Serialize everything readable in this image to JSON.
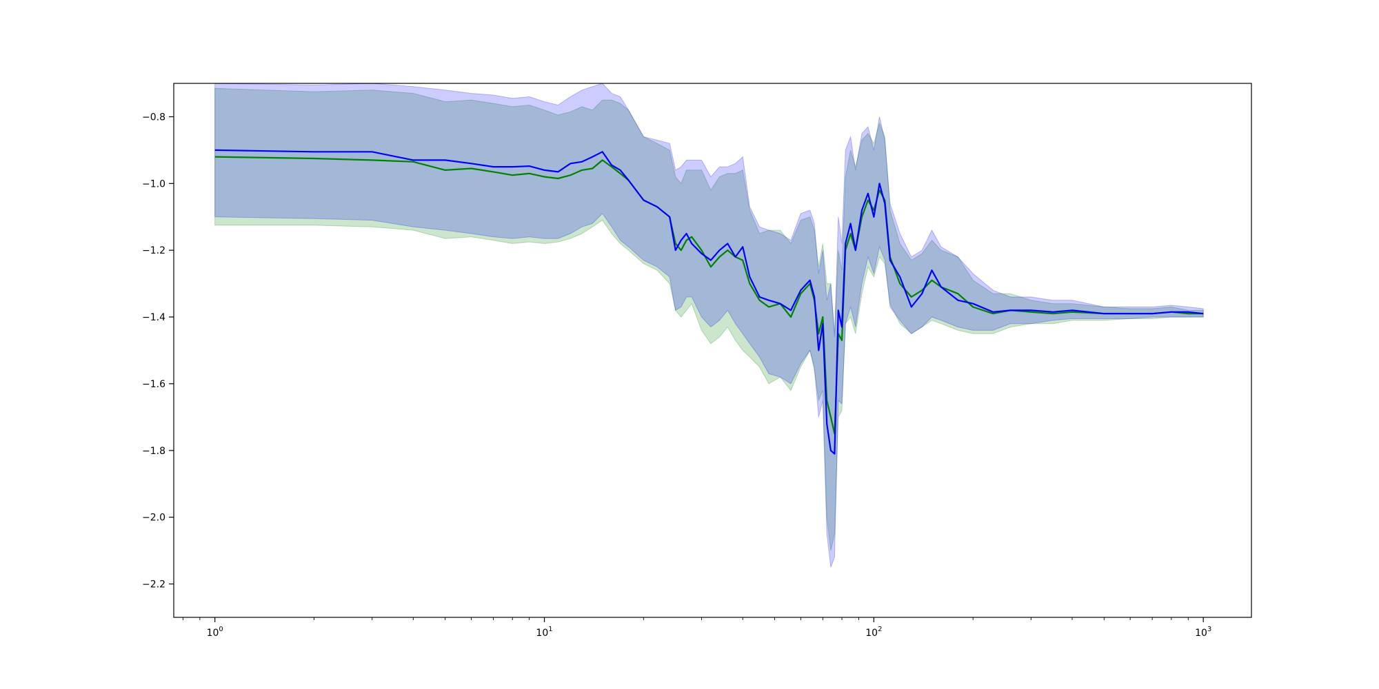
{
  "chart_data": {
    "type": "line",
    "title": "",
    "xlabel": "",
    "ylabel": "",
    "xscale": "log",
    "xlim": [
      0.75,
      1400
    ],
    "ylim": [
      -2.3,
      -0.7
    ],
    "grid": false,
    "legend": "none",
    "x_ticks": [
      {
        "base": "10",
        "exp": "0",
        "value": 1
      },
      {
        "base": "10",
        "exp": "1",
        "value": 10
      },
      {
        "base": "10",
        "exp": "2",
        "value": 100
      },
      {
        "base": "10",
        "exp": "3",
        "value": 1000
      }
    ],
    "y_ticks": [
      {
        "label": "−0.8",
        "value": -0.8
      },
      {
        "label": "−1.0",
        "value": -1.0
      },
      {
        "label": "−1.2",
        "value": -1.2
      },
      {
        "label": "−1.4",
        "value": -1.4
      },
      {
        "label": "−1.6",
        "value": -1.6
      },
      {
        "label": "−1.8",
        "value": -1.8
      },
      {
        "label": "−2.0",
        "value": -2.0
      },
      {
        "label": "−2.2",
        "value": -2.2
      }
    ],
    "series": [
      {
        "color": "#008000",
        "band_color": "#008000",
        "band_opacity": 0.2,
        "x": [
          1,
          2,
          3,
          4,
          5,
          6,
          7,
          8,
          9,
          10,
          11,
          12,
          13,
          14,
          15,
          16,
          17,
          18,
          20,
          22,
          24,
          25,
          26,
          27,
          28,
          30,
          32,
          34,
          36,
          38,
          40,
          42,
          45,
          48,
          52,
          56,
          60,
          64,
          66,
          68,
          70,
          72,
          74,
          76,
          78,
          80,
          82,
          85,
          88,
          92,
          96,
          100,
          104,
          108,
          112,
          120,
          130,
          140,
          150,
          160,
          180,
          200,
          230,
          260,
          300,
          350,
          400,
          500,
          600,
          700,
          800,
          900,
          1000
        ],
        "y": [
          -0.92,
          -0.925,
          -0.93,
          -0.935,
          -0.96,
          -0.955,
          -0.965,
          -0.975,
          -0.97,
          -0.98,
          -0.985,
          -0.975,
          -0.96,
          -0.955,
          -0.93,
          -0.95,
          -0.97,
          -0.99,
          -1.05,
          -1.07,
          -1.1,
          -1.18,
          -1.2,
          -1.17,
          -1.16,
          -1.2,
          -1.25,
          -1.22,
          -1.2,
          -1.22,
          -1.23,
          -1.3,
          -1.35,
          -1.37,
          -1.36,
          -1.4,
          -1.33,
          -1.3,
          -1.35,
          -1.45,
          -1.4,
          -1.65,
          -1.7,
          -1.75,
          -1.45,
          -1.47,
          -1.2,
          -1.15,
          -1.2,
          -1.1,
          -1.05,
          -1.08,
          -1.02,
          -1.05,
          -1.22,
          -1.3,
          -1.34,
          -1.32,
          -1.29,
          -1.31,
          -1.33,
          -1.37,
          -1.39,
          -1.38,
          -1.385,
          -1.39,
          -1.385,
          -1.39,
          -1.39,
          -1.39,
          -1.385,
          -1.39,
          -1.39
        ],
        "lower": [
          -1.125,
          -1.125,
          -1.13,
          -1.14,
          -1.165,
          -1.16,
          -1.17,
          -1.18,
          -1.175,
          -1.18,
          -1.175,
          -1.165,
          -1.15,
          -1.13,
          -1.11,
          -1.15,
          -1.18,
          -1.2,
          -1.24,
          -1.26,
          -1.3,
          -1.38,
          -1.4,
          -1.38,
          -1.36,
          -1.44,
          -1.48,
          -1.46,
          -1.43,
          -1.47,
          -1.5,
          -1.52,
          -1.55,
          -1.6,
          -1.58,
          -1.62,
          -1.55,
          -1.5,
          -1.56,
          -1.65,
          -1.62,
          -2.0,
          -2.1,
          -2.05,
          -1.7,
          -1.68,
          -1.42,
          -1.4,
          -1.45,
          -1.33,
          -1.25,
          -1.28,
          -1.22,
          -1.24,
          -1.36,
          -1.42,
          -1.45,
          -1.43,
          -1.41,
          -1.42,
          -1.44,
          -1.45,
          -1.45,
          -1.43,
          -1.42,
          -1.42,
          -1.41,
          -1.41,
          -1.405,
          -1.405,
          -1.4,
          -1.4,
          -1.4
        ],
        "upper": [
          -0.715,
          -0.725,
          -0.72,
          -0.73,
          -0.755,
          -0.75,
          -0.76,
          -0.77,
          -0.765,
          -0.78,
          -0.795,
          -0.785,
          -0.77,
          -0.78,
          -0.75,
          -0.75,
          -0.76,
          -0.78,
          -0.86,
          -0.88,
          -0.9,
          -0.98,
          -1.0,
          -0.96,
          -0.96,
          -0.96,
          -1.02,
          -0.98,
          -0.97,
          -0.97,
          -0.96,
          -1.08,
          -1.15,
          -1.14,
          -1.14,
          -1.18,
          -1.11,
          -1.1,
          -1.14,
          -1.25,
          -1.18,
          -1.3,
          -1.3,
          -1.45,
          -1.2,
          -1.26,
          -0.98,
          -0.9,
          -0.95,
          -0.87,
          -0.85,
          -0.88,
          -0.82,
          -0.86,
          -1.08,
          -1.18,
          -1.23,
          -1.21,
          -1.17,
          -1.2,
          -1.22,
          -1.29,
          -1.33,
          -1.33,
          -1.35,
          -1.36,
          -1.36,
          -1.37,
          -1.375,
          -1.375,
          -1.37,
          -1.38,
          -1.38
        ]
      },
      {
        "color": "#0000ff",
        "band_color": "#0000ff",
        "band_opacity": 0.2,
        "x": [
          1,
          2,
          3,
          4,
          5,
          6,
          7,
          8,
          9,
          10,
          11,
          12,
          13,
          14,
          15,
          16,
          17,
          18,
          20,
          22,
          24,
          25,
          26,
          27,
          28,
          30,
          32,
          34,
          36,
          38,
          40,
          42,
          45,
          48,
          52,
          56,
          60,
          64,
          66,
          68,
          70,
          72,
          74,
          76,
          78,
          80,
          82,
          85,
          88,
          92,
          96,
          100,
          104,
          108,
          112,
          120,
          130,
          140,
          150,
          160,
          180,
          200,
          230,
          260,
          300,
          350,
          400,
          500,
          600,
          700,
          800,
          900,
          1000
        ],
        "y": [
          -0.9,
          -0.905,
          -0.905,
          -0.93,
          -0.93,
          -0.94,
          -0.95,
          -0.95,
          -0.948,
          -0.96,
          -0.965,
          -0.94,
          -0.935,
          -0.92,
          -0.905,
          -0.945,
          -0.96,
          -0.99,
          -1.05,
          -1.07,
          -1.1,
          -1.2,
          -1.17,
          -1.15,
          -1.18,
          -1.21,
          -1.23,
          -1.2,
          -1.18,
          -1.22,
          -1.19,
          -1.28,
          -1.34,
          -1.35,
          -1.36,
          -1.38,
          -1.32,
          -1.29,
          -1.34,
          -1.5,
          -1.42,
          -1.72,
          -1.8,
          -1.81,
          -1.38,
          -1.43,
          -1.18,
          -1.12,
          -1.2,
          -1.08,
          -1.03,
          -1.1,
          -1.0,
          -1.06,
          -1.23,
          -1.28,
          -1.37,
          -1.33,
          -1.26,
          -1.31,
          -1.35,
          -1.36,
          -1.385,
          -1.38,
          -1.38,
          -1.385,
          -1.38,
          -1.39,
          -1.39,
          -1.39,
          -1.385,
          -1.385,
          -1.39
        ],
        "lower": [
          -1.1,
          -1.105,
          -1.11,
          -1.13,
          -1.14,
          -1.15,
          -1.16,
          -1.165,
          -1.16,
          -1.165,
          -1.165,
          -1.15,
          -1.13,
          -1.12,
          -1.09,
          -1.13,
          -1.17,
          -1.19,
          -1.23,
          -1.25,
          -1.28,
          -1.38,
          -1.37,
          -1.34,
          -1.34,
          -1.4,
          -1.43,
          -1.41,
          -1.38,
          -1.42,
          -1.45,
          -1.48,
          -1.52,
          -1.57,
          -1.58,
          -1.6,
          -1.54,
          -1.5,
          -1.55,
          -1.7,
          -1.65,
          -2.05,
          -2.15,
          -2.12,
          -1.65,
          -1.66,
          -1.42,
          -1.37,
          -1.43,
          -1.3,
          -1.22,
          -1.27,
          -1.19,
          -1.23,
          -1.37,
          -1.41,
          -1.45,
          -1.43,
          -1.4,
          -1.41,
          -1.43,
          -1.44,
          -1.44,
          -1.42,
          -1.42,
          -1.41,
          -1.405,
          -1.405,
          -1.405,
          -1.4,
          -1.4,
          -1.4,
          -1.4
        ],
        "upper": [
          -0.7,
          -0.705,
          -0.7,
          -0.71,
          -0.72,
          -0.73,
          -0.735,
          -0.745,
          -0.74,
          -0.755,
          -0.765,
          -0.74,
          -0.72,
          -0.71,
          -0.7,
          -0.73,
          -0.74,
          -0.78,
          -0.86,
          -0.87,
          -0.88,
          -0.96,
          -0.95,
          -0.93,
          -0.93,
          -0.93,
          -0.98,
          -0.95,
          -0.95,
          -0.94,
          -0.92,
          -1.07,
          -1.13,
          -1.14,
          -1.15,
          -1.17,
          -1.09,
          -1.08,
          -1.12,
          -1.27,
          -1.2,
          -1.35,
          -1.3,
          -1.46,
          -1.1,
          -1.18,
          -0.9,
          -0.86,
          -0.96,
          -0.85,
          -0.83,
          -0.9,
          -0.8,
          -0.87,
          -1.06,
          -1.15,
          -1.22,
          -1.2,
          -1.14,
          -1.19,
          -1.22,
          -1.27,
          -1.32,
          -1.34,
          -1.34,
          -1.35,
          -1.35,
          -1.37,
          -1.37,
          -1.37,
          -1.365,
          -1.37,
          -1.375
        ]
      }
    ]
  }
}
